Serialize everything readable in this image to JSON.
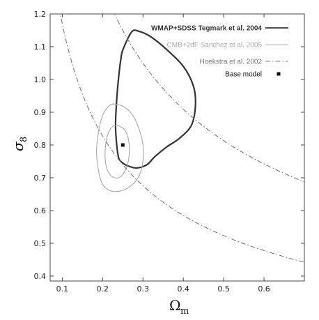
{
  "chart_data": {
    "type": "line",
    "xlabel": "Ω",
    "xlabel_sub": "m",
    "ylabel": "σ",
    "ylabel_sub": "8",
    "xlim": [
      0.07,
      0.7
    ],
    "ylim": [
      0.385,
      1.2
    ],
    "xticks": [
      "0.1",
      "0.2",
      "0.3",
      "0.4",
      "0.5",
      "0.6"
    ],
    "xtick_values": [
      0.1,
      0.2,
      0.3,
      0.4,
      0.5,
      0.6
    ],
    "yticks": [
      "0.4",
      "0.5",
      "0.6",
      "0.7",
      "0.8",
      "0.9",
      "1.0",
      "1.1",
      "1.2"
    ],
    "ytick_values": [
      0.4,
      0.5,
      0.6,
      0.7,
      0.8,
      0.9,
      1.0,
      1.1,
      1.2
    ],
    "legend_position": "top-right",
    "grid": false,
    "series": [
      {
        "name": "WMAP+SDSS Tegmark et al. 2004",
        "style": "solid",
        "color": "#333333",
        "closed": true,
        "points": [
          [
            0.25,
            1.09
          ],
          [
            0.272,
            1.145
          ],
          [
            0.29,
            1.147
          ],
          [
            0.32,
            1.13
          ],
          [
            0.36,
            1.09
          ],
          [
            0.4,
            1.04
          ],
          [
            0.425,
            0.98
          ],
          [
            0.43,
            0.92
          ],
          [
            0.42,
            0.86
          ],
          [
            0.39,
            0.82
          ],
          [
            0.36,
            0.795
          ],
          [
            0.33,
            0.765
          ],
          [
            0.31,
            0.74
          ],
          [
            0.285,
            0.73
          ],
          [
            0.265,
            0.735
          ],
          [
            0.25,
            0.745
          ],
          [
            0.24,
            0.76
          ],
          [
            0.235,
            0.8
          ],
          [
            0.232,
            0.86
          ],
          [
            0.235,
            0.94
          ],
          [
            0.24,
            1.01
          ],
          [
            0.245,
            1.06
          ]
        ]
      },
      {
        "name": "CMB+2dF Sanchez et al. 2005",
        "style": "solid",
        "color": "#a8a8a8",
        "closed": true,
        "contours": [
          [
            [
              0.23,
              0.925
            ],
            [
              0.255,
              0.915
            ],
            [
              0.275,
              0.89
            ],
            [
              0.29,
              0.85
            ],
            [
              0.3,
              0.8
            ],
            [
              0.3,
              0.75
            ],
            [
              0.29,
              0.705
            ],
            [
              0.27,
              0.675
            ],
            [
              0.245,
              0.66
            ],
            [
              0.22,
              0.66
            ],
            [
              0.2,
              0.68
            ],
            [
              0.19,
              0.72
            ],
            [
              0.185,
              0.78
            ],
            [
              0.19,
              0.84
            ],
            [
              0.2,
              0.89
            ],
            [
              0.215,
              0.918
            ]
          ],
          [
            [
              0.235,
              0.86
            ],
            [
              0.255,
              0.845
            ],
            [
              0.265,
              0.81
            ],
            [
              0.265,
              0.76
            ],
            [
              0.255,
              0.72
            ],
            [
              0.24,
              0.7
            ],
            [
              0.222,
              0.705
            ],
            [
              0.21,
              0.73
            ],
            [
              0.206,
              0.77
            ],
            [
              0.21,
              0.82
            ],
            [
              0.22,
              0.85
            ]
          ]
        ]
      },
      {
        "name": "Hoekstra et al. 2002",
        "style": "dashdot",
        "color": "#777777",
        "curves": [
          {
            "A": 0.575,
            "p": 0.5
          },
          {
            "A": 0.37,
            "p": 0.5
          }
        ]
      }
    ],
    "markers": [
      {
        "name": "Base model",
        "x": 0.25,
        "y": 0.8
      }
    ]
  }
}
